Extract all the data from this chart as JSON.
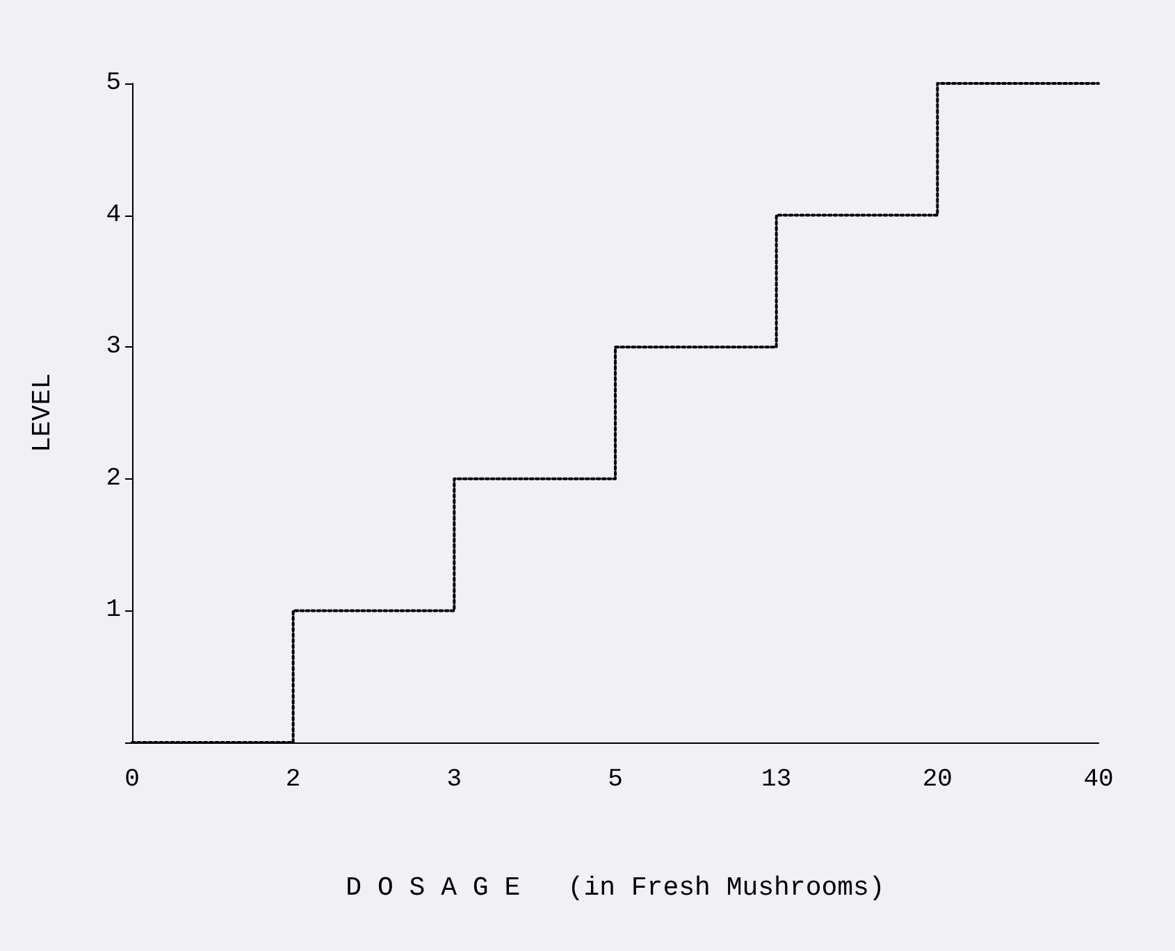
{
  "chart_data": {
    "type": "step",
    "xlabel": "D O S A G E   (in Fresh Mushrooms)",
    "ylabel": "LEVEL",
    "categories": [
      "0",
      "2",
      "3",
      "5",
      "13",
      "20",
      "40"
    ],
    "series": [
      {
        "color": "#000000",
        "values": [
          0,
          1,
          2,
          3,
          4,
          5,
          5
        ]
      }
    ],
    "ylim": [
      0,
      5
    ],
    "yticks": [
      {
        "value": 0,
        "label": null
      },
      1,
      2,
      3,
      4,
      5
    ],
    "grid": false,
    "marker": "none",
    "line_style": "dotted"
  }
}
